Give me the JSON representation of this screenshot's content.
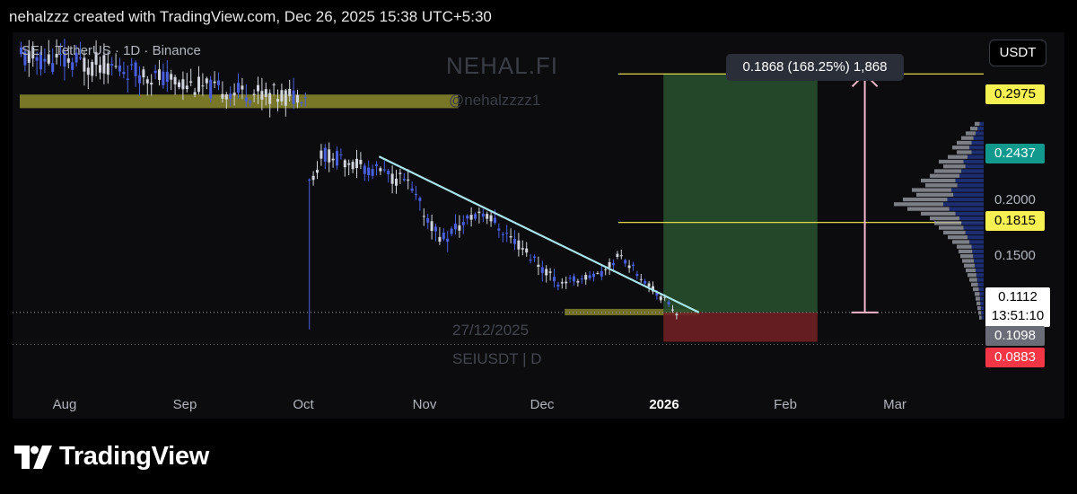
{
  "header": {
    "text": "nehalzzz created with TradingView.com, Dec 26, 2025 15:38 UTC+5:30"
  },
  "symbol": {
    "legend": "SEI · TetherUS · 1D · Binance"
  },
  "watermark": {
    "title": "NEHAL.FI",
    "handle": "@nehalzzzz1",
    "date": "27/12/2025",
    "symbol": "SEIUSDT | D"
  },
  "currency": "USDT",
  "measure": {
    "label": "0.1868 (168.25%) 1,868"
  },
  "price_tags": {
    "target": "0.2975",
    "last": "0.2437",
    "mid": "0.1815",
    "entry_price": "0.1112",
    "countdown": "13:51:10",
    "support": "0.1098",
    "stop": "0.0883"
  },
  "colors": {
    "up": "#4a5fe0",
    "down": "#d1d4dc",
    "yellow_zone": "#8c8a2c",
    "trendline": "#a8e6ec",
    "target_zone": "#274d2c",
    "stop_zone": "#6e1f22",
    "target_tag": "#f7f052",
    "teal_tag": "#11998e",
    "stop_tag": "#f23645",
    "gray_tag": "#6a6d78",
    "arrow": "#f4b8cb",
    "volume_profile": "#1e2f78"
  },
  "footer": {
    "brand": "TradingView"
  },
  "icons": {
    "footer_logo": "tradingview-logo-icon"
  },
  "chart_data": {
    "type": "candlestick",
    "symbol": "SEIUSDT",
    "interval": "1D",
    "exchange": "Binance",
    "time_axis": [
      "Aug",
      "Sep",
      "Oct",
      "Nov",
      "Dec",
      "2026",
      "Feb",
      "Mar"
    ],
    "price_axis": [
      "0.2000",
      "0.1500"
    ],
    "y_range": [
      0.055,
      0.33
    ],
    "x_start": "2025-07-13",
    "segments": [
      {
        "days": 20,
        "start": 0.31,
        "end": 0.305,
        "noise": 0.02
      },
      {
        "days": 30,
        "start": 0.305,
        "end": 0.285,
        "noise": 0.016
      },
      {
        "days": 20,
        "start": 0.285,
        "end": 0.28,
        "noise": 0.016
      },
      {
        "days": 3,
        "start": 0.28,
        "end": 0.28,
        "noise": 0.01
      },
      {
        "days": 1,
        "start": 0.28,
        "end": 0.215,
        "noise": 0.0,
        "low": 0.098
      },
      {
        "days": 3,
        "start": 0.215,
        "end": 0.235,
        "noise": 0.012
      },
      {
        "days": 20,
        "start": 0.235,
        "end": 0.215,
        "noise": 0.012
      },
      {
        "days": 10,
        "start": 0.215,
        "end": 0.17,
        "noise": 0.012
      },
      {
        "days": 10,
        "start": 0.17,
        "end": 0.19,
        "noise": 0.012
      },
      {
        "days": 20,
        "start": 0.19,
        "end": 0.135,
        "noise": 0.01
      },
      {
        "days": 10,
        "start": 0.135,
        "end": 0.14,
        "noise": 0.006
      },
      {
        "days": 5,
        "start": 0.14,
        "end": 0.155,
        "noise": 0.008
      },
      {
        "days": 15,
        "start": 0.155,
        "end": 0.1112,
        "noise": 0.006
      }
    ],
    "resistance_zone": {
      "top": 0.28,
      "bottom": 0.275,
      "from": "2025-07-13",
      "to": "2025-11-01"
    },
    "support_zone": {
      "top": 0.114,
      "bottom": 0.109,
      "from": "2025-11-28",
      "to": "2026-01-01"
    },
    "trendline": [
      {
        "date": "2025-10-12",
        "price": 0.233
      },
      {
        "date": "2026-01-01",
        "price": 0.1112
      }
    ],
    "position": {
      "from": "2025-12-23",
      "to": "2026-01-31",
      "entry": 0.1112,
      "target": 0.2975,
      "stop": 0.0883,
      "measure_date": "2026-02-12"
    },
    "levels": [
      {
        "price": 0.2975,
        "label": "0.2975"
      },
      {
        "price": 0.1815,
        "label": "0.1815"
      }
    ],
    "price_markers": [
      0.2975,
      0.2437,
      0.1815,
      0.1112,
      0.1098,
      0.0883
    ],
    "volume_profile": {
      "price_min": 0.105,
      "price_max": 0.26,
      "rows": 42,
      "max_width": 100,
      "shape": [
        0.1,
        0.15,
        0.2,
        0.25,
        0.3,
        0.35,
        0.3,
        0.4,
        0.5,
        0.45,
        0.55,
        0.6,
        0.7,
        0.65,
        0.8,
        0.75,
        0.9,
        1.0,
        0.85,
        0.7,
        0.6,
        0.55,
        0.5,
        0.45,
        0.4,
        0.35,
        0.3,
        0.28,
        0.26,
        0.24,
        0.22,
        0.2,
        0.18,
        0.16,
        0.14,
        0.12,
        0.1,
        0.09,
        0.08,
        0.07,
        0.06,
        0.05
      ]
    }
  }
}
